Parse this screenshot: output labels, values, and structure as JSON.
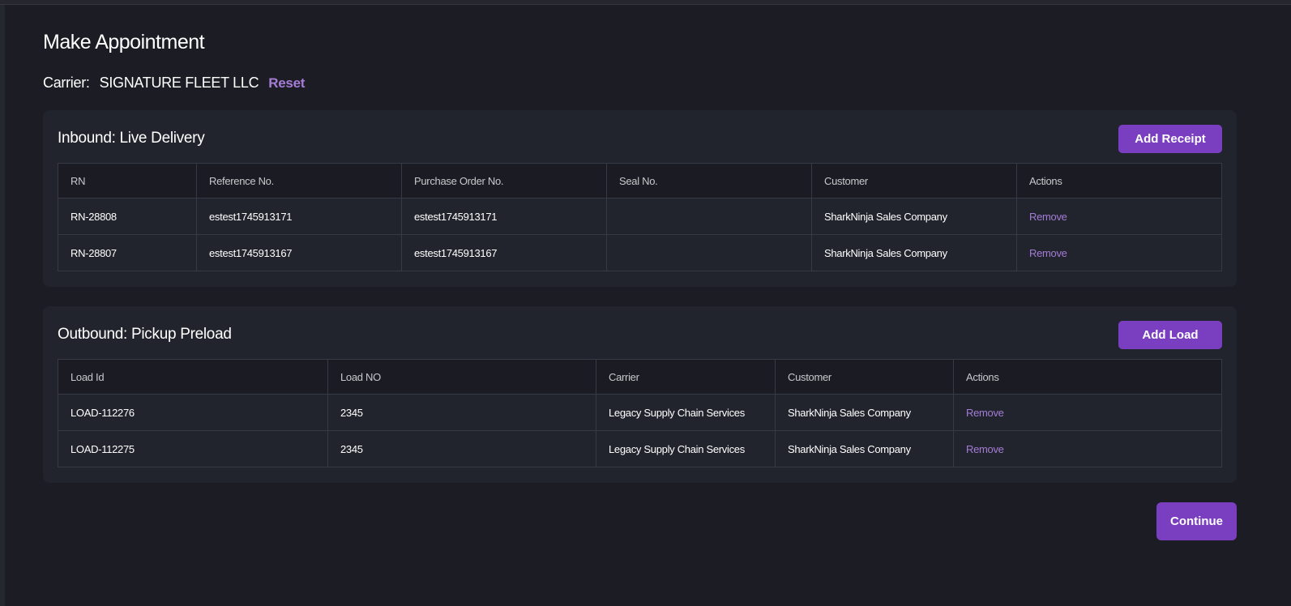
{
  "page": {
    "title": "Make Appointment"
  },
  "carrier": {
    "label": "Carrier:",
    "value": "SIGNATURE FLEET LLC",
    "reset_label": "Reset"
  },
  "inbound": {
    "title": "Inbound: Live Delivery",
    "add_label": "Add Receipt",
    "columns": [
      "RN",
      "Reference No.",
      "Purchase Order No.",
      "Seal No.",
      "Customer",
      "Actions"
    ],
    "rows": [
      {
        "rn": "RN-28808",
        "ref": "estest1745913171",
        "po": "estest1745913171",
        "seal": "",
        "customer": "SharkNinja Sales Company",
        "action": "Remove"
      },
      {
        "rn": "RN-28807",
        "ref": "estest1745913167",
        "po": "estest1745913167",
        "seal": "",
        "customer": "SharkNinja Sales Company",
        "action": "Remove"
      }
    ]
  },
  "outbound": {
    "title": "Outbound: Pickup Preload",
    "add_label": "Add Load",
    "columns": [
      "Load Id",
      "Load NO",
      "Carrier",
      "Customer",
      "Actions"
    ],
    "rows": [
      {
        "id": "LOAD-112276",
        "no": "2345",
        "carrier": "Legacy Supply Chain Services",
        "customer": "SharkNinja Sales Company",
        "action": "Remove"
      },
      {
        "id": "LOAD-112275",
        "no": "2345",
        "carrier": "Legacy Supply Chain Services",
        "customer": "SharkNinja Sales Company",
        "action": "Remove"
      }
    ]
  },
  "footer": {
    "continue_label": "Continue"
  },
  "colors": {
    "accent": "#7a3fc0",
    "link": "#a47cd6",
    "background": "#1c1d24",
    "card": "#21242c"
  }
}
